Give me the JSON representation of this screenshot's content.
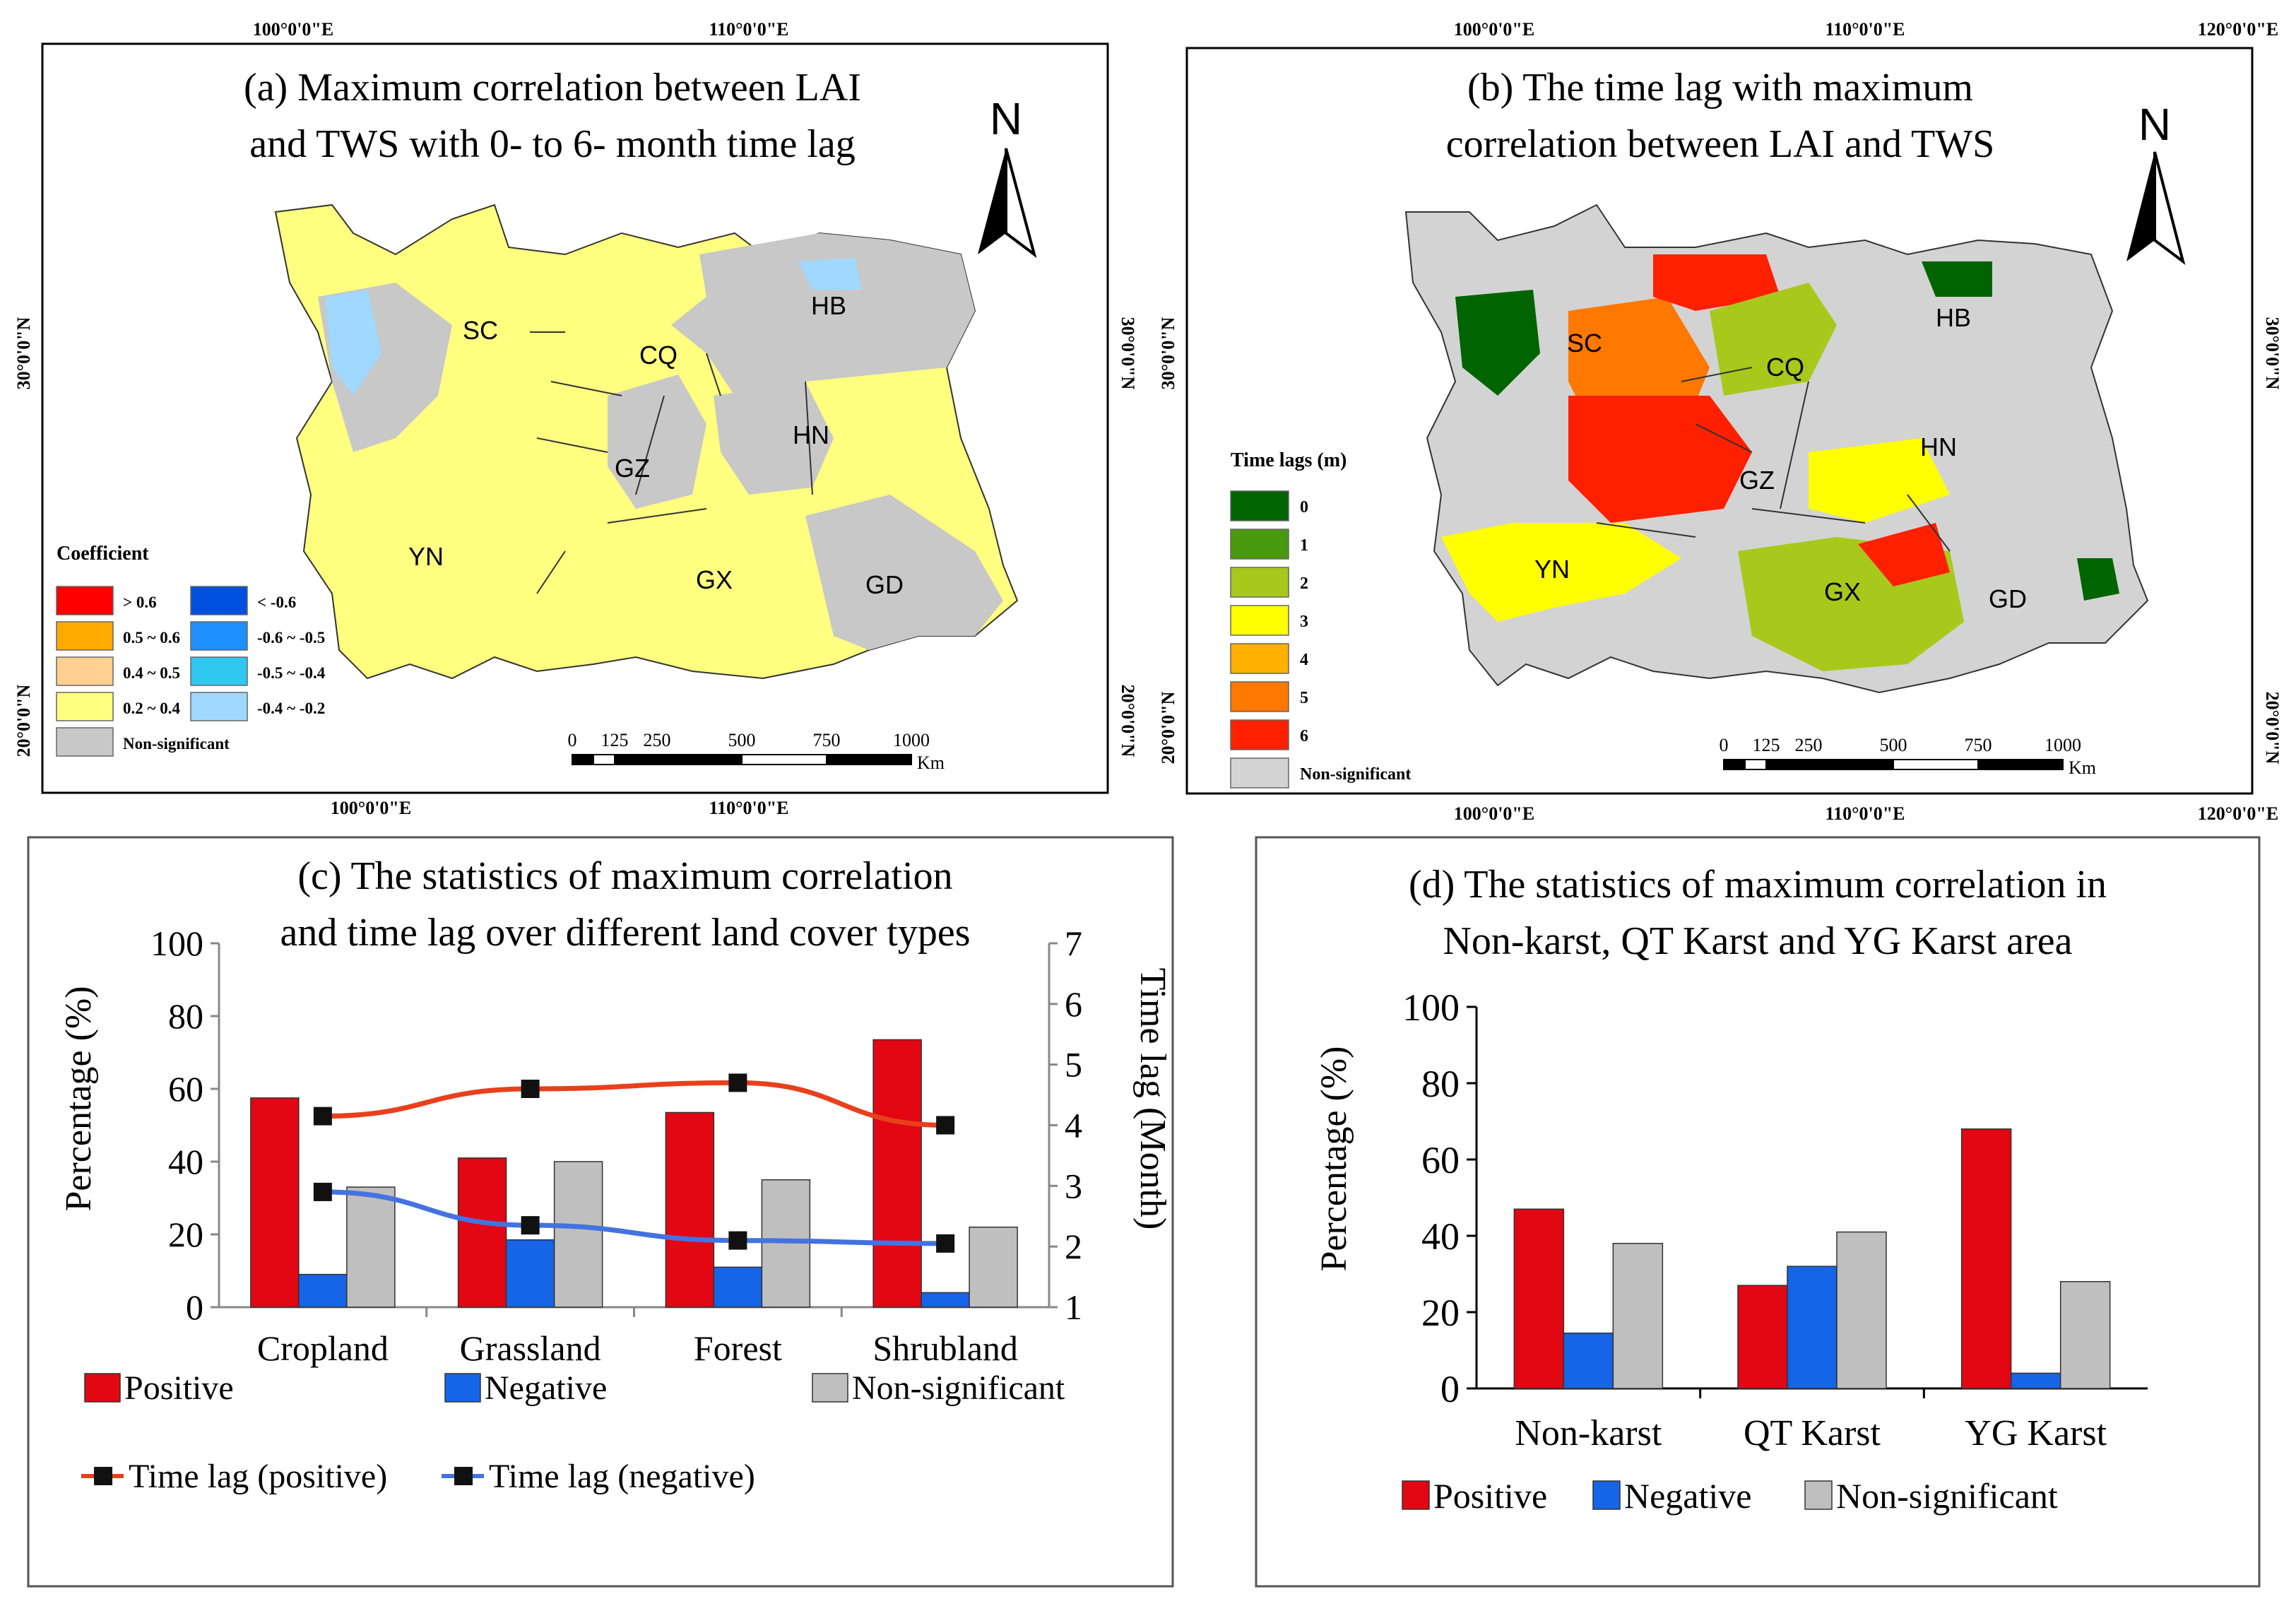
{
  "colors": {
    "positive": "#e30613",
    "negative": "#1565e6",
    "nonsig": "#bfbfbf",
    "lag_pos_line": "#e8401c",
    "lag_neg_line": "#4472e0",
    "map_yellow": "#ffff80",
    "map_grey": "#c8c8c8"
  },
  "panel_a": {
    "title_line1": "(a) Maximum correlation between LAI",
    "title_line2": "and TWS with 0- to 6- month time lag",
    "north": "N",
    "top_lon_labels": [
      "100°0'0\"E",
      "110°0'0\"E"
    ],
    "bottom_lon_labels": [
      "100°0'0\"E",
      "110°0'0\"E"
    ],
    "lat_labels": [
      "30°0'0\"N",
      "20°0'0\"N"
    ],
    "right_lat_labels": [
      "30°0'0\"N",
      "20°0'0\"N"
    ],
    "regions": [
      "SC",
      "CQ",
      "HB",
      "HN",
      "GZ",
      "YN",
      "GX",
      "GD"
    ],
    "legend_title": "Coefficient",
    "legend_left": [
      {
        "label": "> 0.6",
        "color": "#ff0000"
      },
      {
        "label": "0.5 ~ 0.6",
        "color": "#ffaa00"
      },
      {
        "label": "0.4 ~ 0.5",
        "color": "#ffd090"
      },
      {
        "label": "0.2 ~ 0.4",
        "color": "#ffff80"
      },
      {
        "label": "Non-significant",
        "color": "#c8c8c8"
      }
    ],
    "legend_right": [
      {
        "label": "< -0.6",
        "color": "#0050e0"
      },
      {
        "label": "-0.6 ~ -0.5",
        "color": "#1e90ff"
      },
      {
        "label": "-0.5 ~ -0.4",
        "color": "#30c8f0"
      },
      {
        "label": "-0.4 ~ -0.2",
        "color": "#a0d8ff"
      }
    ],
    "scale_ticks": [
      "0",
      "125",
      "250",
      "500",
      "750",
      "1000"
    ],
    "scale_unit": "Km"
  },
  "panel_b": {
    "title_line1": "(b) The time lag with maximum",
    "title_line2": "correlation between LAI and TWS",
    "north": "N",
    "top_lon_labels": [
      "100°0'0\"E",
      "110°0'0\"E",
      "120°0'0\"E"
    ],
    "bottom_lon_labels": [
      "100°0'0\"E",
      "110°0'0\"E",
      "120°0'0\"E"
    ],
    "lat_labels": [
      "30°0'0\"N",
      "20°0'0\"N"
    ],
    "right_lat_labels": [
      "30°0'0\"N",
      "20°0'0\"N"
    ],
    "regions": [
      "SC",
      "CQ",
      "HB",
      "HN",
      "GZ",
      "YN",
      "GX",
      "GD"
    ],
    "legend_title": "Time lags (m)",
    "legend": [
      {
        "label": "0",
        "color": "#006400"
      },
      {
        "label": "1",
        "color": "#4a9a10"
      },
      {
        "label": "2",
        "color": "#a8c81c"
      },
      {
        "label": "3",
        "color": "#ffff00"
      },
      {
        "label": "4",
        "color": "#ffb000"
      },
      {
        "label": "5",
        "color": "#ff7800"
      },
      {
        "label": "6",
        "color": "#ff2000"
      },
      {
        "label": "Non-significant",
        "color": "#d3d3d3"
      }
    ],
    "scale_ticks": [
      "0",
      "125",
      "250",
      "500",
      "750",
      "1000"
    ],
    "scale_unit": "Km"
  },
  "chart_data": [
    {
      "id": "c",
      "type": "bar",
      "title": "(c) The statistics of maximum correlation and time lag over different land cover types",
      "title_line1": "(c) The statistics of maximum correlation",
      "title_line2": "and time lag over different land cover types",
      "categories": [
        "Cropland",
        "Grassland",
        "Forest",
        "Shrubland"
      ],
      "series": [
        {
          "name": "Positive",
          "values": [
            57.5,
            41,
            53.5,
            73.5
          ]
        },
        {
          "name": "Negative",
          "values": [
            9,
            18.5,
            11,
            4
          ]
        },
        {
          "name": "Non-significant",
          "values": [
            33,
            40,
            35,
            22
          ]
        }
      ],
      "line_series": [
        {
          "name": "Time lag (positive)",
          "values": [
            4.15,
            4.6,
            4.7,
            4.0
          ]
        },
        {
          "name": "Time lag (negative)",
          "values": [
            2.9,
            2.35,
            2.1,
            2.05
          ]
        }
      ],
      "ylabel": "Percentage (%)",
      "y2label": "Time lag (Month)",
      "ylim": [
        0,
        100
      ],
      "y2lim": [
        1,
        7
      ],
      "yticks": [
        "0",
        "20",
        "40",
        "60",
        "80",
        "100"
      ],
      "y2ticks": [
        "1",
        "2",
        "3",
        "4",
        "5",
        "6",
        "7"
      ],
      "legend": [
        "Positive",
        "Negative",
        "Non-significant",
        "Time lag (positive)",
        "Time lag (negative)"
      ]
    },
    {
      "id": "d",
      "type": "bar",
      "title": "(d) The statistics of maximum correlation in Non-karst, QT Karst and YG Karst area",
      "title_line1": "(d) The statistics of maximum correlation in",
      "title_line2": "Non-karst, QT Karst and YG Karst area",
      "categories": [
        "Non-karst",
        "QT Karst",
        "YG Karst"
      ],
      "series": [
        {
          "name": "Positive",
          "values": [
            47,
            27,
            68
          ]
        },
        {
          "name": "Negative",
          "values": [
            14.5,
            32,
            4
          ]
        },
        {
          "name": "Non-significant",
          "values": [
            38,
            41,
            28
          ]
        }
      ],
      "ylabel": "Percentage (%)",
      "ylim": [
        0,
        100
      ],
      "yticks": [
        "0",
        "20",
        "40",
        "60",
        "80",
        "100"
      ],
      "legend": [
        "Positive",
        "Negative",
        "Non-significant"
      ]
    }
  ]
}
